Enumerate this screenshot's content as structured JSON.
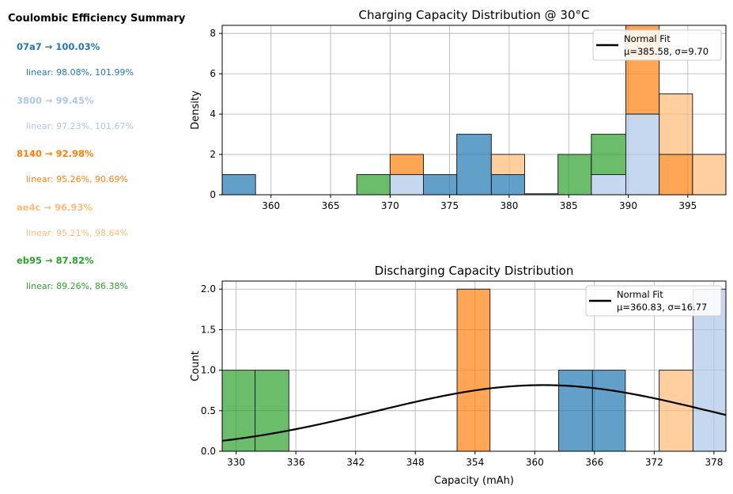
{
  "summary": {
    "title": "Coulombic Efficiency Summary",
    "entries": [
      {
        "head": "07a7 → 100.03%",
        "sub": "linear: 98.08%, 101.99%",
        "color": "#1f77b4"
      },
      {
        "head": "3800 → 99.45%",
        "sub": "linear: 97.23%, 101.67%",
        "color": "#aec7e8"
      },
      {
        "head": "8140 → 92.98%",
        "sub": "linear: 95.26%, 90.69%",
        "color": "#ff7f0e"
      },
      {
        "head": "ae4c → 96.93%",
        "sub": "linear: 95.21%, 98.64%",
        "color": "#ffbb78"
      },
      {
        "head": "eb95 → 87.82%",
        "sub": "linear: 89.26%, 86.38%",
        "color": "#2ca02c"
      }
    ]
  },
  "chart_data": [
    {
      "type": "bar",
      "title": "Charging Capacity Distribution @ 30°C",
      "xlabel": "",
      "ylabel": "Density",
      "xlim": [
        355.9,
        398.2
      ],
      "ylim": [
        0,
        8.4
      ],
      "xticks": [
        360,
        365,
        370,
        375,
        380,
        385,
        390,
        395
      ],
      "yticks": [
        0,
        2,
        4,
        6,
        8
      ],
      "grid": true,
      "legend": {
        "position": "top-right",
        "line_label": "Normal Fit",
        "stats": "μ=385.58, σ=9.70"
      },
      "series_colors": {
        "07a7": "#1f77b4",
        "3800": "#aec7e8",
        "8140": "#ff7f0e",
        "ae4c": "#ffbb78",
        "eb95": "#2ca02c"
      },
      "bars": [
        {
          "x0": 355.9,
          "x1": 358.7,
          "y0": 0,
          "y1": 1,
          "series": "07a7"
        },
        {
          "x0": 367.2,
          "x1": 370.0,
          "y0": 0,
          "y1": 1,
          "series": "eb95"
        },
        {
          "x0": 370.0,
          "x1": 372.8,
          "y0": 0,
          "y1": 1,
          "series": "3800"
        },
        {
          "x0": 370.0,
          "x1": 372.8,
          "y0": 1,
          "y1": 2,
          "series": "8140"
        },
        {
          "x0": 372.8,
          "x1": 375.6,
          "y0": 0,
          "y1": 1,
          "series": "07a7"
        },
        {
          "x0": 375.6,
          "x1": 378.5,
          "y0": 0,
          "y1": 3,
          "series": "07a7"
        },
        {
          "x0": 378.5,
          "x1": 381.3,
          "y0": 0,
          "y1": 1,
          "series": "07a7"
        },
        {
          "x0": 378.5,
          "x1": 381.3,
          "y0": 1,
          "y1": 2,
          "series": "ae4c"
        },
        {
          "x0": 381.3,
          "x1": 384.1,
          "y0": 0,
          "y1": 0.05,
          "series": "07a7"
        },
        {
          "x0": 384.1,
          "x1": 386.9,
          "y0": 0,
          "y1": 2,
          "series": "eb95"
        },
        {
          "x0": 386.9,
          "x1": 389.8,
          "y0": 0,
          "y1": 1,
          "series": "3800"
        },
        {
          "x0": 386.9,
          "x1": 389.8,
          "y0": 1,
          "y1": 3,
          "series": "eb95"
        },
        {
          "x0": 389.8,
          "x1": 392.6,
          "y0": 0,
          "y1": 4,
          "series": "3800"
        },
        {
          "x0": 389.8,
          "x1": 392.6,
          "y0": 4,
          "y1": 8.4,
          "series": "8140"
        },
        {
          "x0": 392.6,
          "x1": 395.4,
          "y0": 0,
          "y1": 2,
          "series": "8140"
        },
        {
          "x0": 392.6,
          "x1": 395.4,
          "y0": 2,
          "y1": 5,
          "series": "ae4c"
        },
        {
          "x0": 395.4,
          "x1": 398.2,
          "y0": 0,
          "y1": 2,
          "series": "ae4c"
        }
      ],
      "curve": null
    },
    {
      "type": "bar",
      "title": "Discharging Capacity Distribution",
      "xlabel": "Capacity (mAh)",
      "ylabel": "Count",
      "xlim": [
        328.6,
        379.2
      ],
      "ylim": [
        0,
        2.1
      ],
      "xticks": [
        330,
        336,
        342,
        348,
        354,
        360,
        366,
        372,
        378
      ],
      "xtick_labels": [
        "330",
        "336",
        "342",
        "348",
        "354",
        "360",
        "366",
        "372",
        "378"
      ],
      "yticks": [
        0.0,
        0.5,
        1.0,
        1.5,
        2.0
      ],
      "ytick_labels": [
        "0.0",
        "0.5",
        "1.0",
        "1.5",
        "2.0"
      ],
      "grid": true,
      "legend": {
        "position": "top-right",
        "line_label": "Normal Fit",
        "stats": "μ=360.83, σ=16.77"
      },
      "series_colors": {
        "07a7": "#1f77b4",
        "3800": "#aec7e8",
        "8140": "#ff7f0e",
        "ae4c": "#ffbb78",
        "eb95": "#2ca02c"
      },
      "bars": [
        {
          "x0": 328.6,
          "x1": 331.9,
          "y0": 0,
          "y1": 1,
          "series": "eb95"
        },
        {
          "x0": 331.9,
          "x1": 335.3,
          "y0": 0,
          "y1": 1,
          "series": "eb95"
        },
        {
          "x0": 352.2,
          "x1": 355.5,
          "y0": 0,
          "y1": 2,
          "series": "8140"
        },
        {
          "x0": 362.4,
          "x1": 365.8,
          "y0": 0,
          "y1": 1,
          "series": "07a7"
        },
        {
          "x0": 365.8,
          "x1": 369.1,
          "y0": 0,
          "y1": 1,
          "series": "07a7"
        },
        {
          "x0": 372.5,
          "x1": 375.9,
          "y0": 0,
          "y1": 1,
          "series": "ae4c"
        },
        {
          "x0": 375.9,
          "x1": 379.2,
          "y0": 0,
          "y1": 2,
          "series": "3800"
        }
      ],
      "curve": {
        "mu": 360.83,
        "sigma": 16.77,
        "scale": 34.3
      }
    }
  ]
}
